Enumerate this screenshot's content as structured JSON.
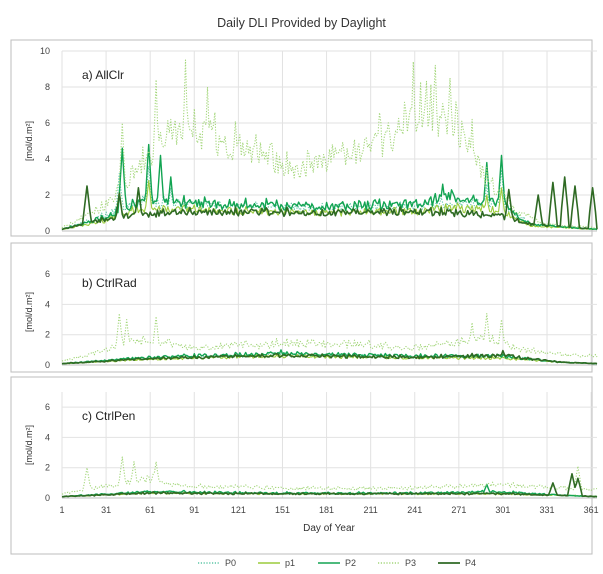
{
  "title": "Daily DLI Provided by Daylight",
  "xlabel": "Day of Year",
  "colors": {
    "P0": "#5cc6a6",
    "p1": "#9ccc3c",
    "P2": "#12a452",
    "P3": "#a3d67a",
    "P4": "#2f6a24"
  },
  "chart_data": [
    {
      "type": "line",
      "panel_label": "a) AllClr",
      "ylabel": "[mol/d.m²]",
      "ylim": [
        0,
        10
      ],
      "yticks": [
        0,
        2,
        4,
        6,
        8,
        10
      ],
      "xlim": [
        1,
        365
      ],
      "xticks": [
        1,
        31,
        61,
        91,
        121,
        151,
        181,
        211,
        241,
        271,
        301,
        331,
        361
      ],
      "grid": true,
      "series": [
        {
          "name": "P0",
          "style": "dotted",
          "profile": [
            [
              1,
              0.1
            ],
            [
              30,
              0.9
            ],
            [
              45,
              1.6
            ],
            [
              60,
              1.8
            ],
            [
              80,
              1.6
            ],
            [
              120,
              1.5
            ],
            [
              180,
              1.45
            ],
            [
              240,
              1.5
            ],
            [
              270,
              1.7
            ],
            [
              300,
              1.5
            ],
            [
              320,
              0.4
            ],
            [
              365,
              0.1
            ]
          ],
          "peaks": [
            [
              40,
              3.2
            ],
            [
              60,
              3.6
            ],
            [
              75,
              2.4
            ],
            [
              290,
              2.6
            ],
            [
              300,
              3.4
            ]
          ]
        },
        {
          "name": "p1",
          "style": "solid",
          "profile": [
            [
              1,
              0.1
            ],
            [
              30,
              0.6
            ],
            [
              45,
              1.1
            ],
            [
              60,
              1.4
            ],
            [
              80,
              1.3
            ],
            [
              120,
              1.2
            ],
            [
              180,
              1.1
            ],
            [
              240,
              1.2
            ],
            [
              270,
              1.4
            ],
            [
              300,
              1.2
            ],
            [
              320,
              0.3
            ],
            [
              365,
              0.1
            ]
          ],
          "peaks": [
            [
              40,
              2.2
            ],
            [
              60,
              2.8
            ],
            [
              290,
              2.0
            ],
            [
              300,
              2.4
            ]
          ]
        },
        {
          "name": "P2",
          "style": "solid",
          "profile": [
            [
              1,
              0.1
            ],
            [
              30,
              0.8
            ],
            [
              45,
              1.5
            ],
            [
              60,
              1.8
            ],
            [
              80,
              1.7
            ],
            [
              120,
              1.55
            ],
            [
              180,
              1.5
            ],
            [
              240,
              1.6
            ],
            [
              265,
              2.1
            ],
            [
              300,
              1.6
            ],
            [
              320,
              0.4
            ],
            [
              365,
              0.1
            ]
          ],
          "peaks": [
            [
              42,
              4.6
            ],
            [
              60,
              4.8
            ],
            [
              68,
              4.2
            ],
            [
              75,
              3.0
            ],
            [
              260,
              2.6
            ],
            [
              290,
              3.8
            ],
            [
              300,
              4.2
            ]
          ]
        },
        {
          "name": "P3",
          "style": "dotted",
          "profile": [
            [
              1,
              0.2
            ],
            [
              30,
              1.5
            ],
            [
              45,
              3.0
            ],
            [
              60,
              4.5
            ],
            [
              80,
              6.5
            ],
            [
              120,
              5.2
            ],
            [
              160,
              3.8
            ],
            [
              200,
              4.8
            ],
            [
              230,
              6.2
            ],
            [
              250,
              7.6
            ],
            [
              270,
              6.4
            ],
            [
              290,
              3.2
            ],
            [
              310,
              1.2
            ],
            [
              330,
              0.4
            ],
            [
              365,
              0.2
            ]
          ],
          "peaks": [
            [
              42,
              6.0
            ],
            [
              65,
              8.4
            ],
            [
              85,
              9.5
            ],
            [
              100,
              8.0
            ],
            [
              240,
              9.4
            ],
            [
              255,
              9.2
            ],
            [
              265,
              8.5
            ],
            [
              280,
              6.2
            ]
          ]
        },
        {
          "name": "P4",
          "style": "solid",
          "profile": [
            [
              1,
              0.1
            ],
            [
              30,
              0.7
            ],
            [
              45,
              0.9
            ],
            [
              60,
              1.0
            ],
            [
              80,
              1.2
            ],
            [
              120,
              1.15
            ],
            [
              180,
              1.1
            ],
            [
              240,
              1.15
            ],
            [
              270,
              1.1
            ],
            [
              300,
              0.9
            ],
            [
              320,
              0.4
            ],
            [
              365,
              0.1
            ]
          ],
          "peaks": [
            [
              18,
              2.5
            ],
            [
              40,
              2.1
            ],
            [
              53,
              2.4
            ],
            [
              305,
              2.3
            ],
            [
              325,
              2.0
            ],
            [
              335,
              2.7
            ],
            [
              343,
              3.0
            ],
            [
              350,
              2.5
            ],
            [
              362,
              2.4
            ]
          ]
        }
      ]
    },
    {
      "type": "line",
      "panel_label": "b) CtrlRad",
      "ylabel": "[mol/d.m²]",
      "ylim": [
        0,
        7
      ],
      "yticks": [
        0,
        2,
        4,
        6
      ],
      "xlim": [
        1,
        365
      ],
      "xticks": [
        1,
        31,
        61,
        91,
        121,
        151,
        181,
        211,
        241,
        271,
        301,
        331,
        361
      ],
      "grid": true,
      "series": [
        {
          "name": "P0",
          "style": "dotted",
          "profile": [
            [
              1,
              0.1
            ],
            [
              60,
              0.5
            ],
            [
              150,
              0.75
            ],
            [
              240,
              0.6
            ],
            [
              300,
              0.6
            ],
            [
              340,
              0.2
            ],
            [
              365,
              0.1
            ]
          ],
          "peaks": []
        },
        {
          "name": "p1",
          "style": "solid",
          "profile": [
            [
              1,
              0.1
            ],
            [
              60,
              0.4
            ],
            [
              150,
              0.65
            ],
            [
              240,
              0.5
            ],
            [
              300,
              0.5
            ],
            [
              340,
              0.2
            ],
            [
              365,
              0.1
            ]
          ],
          "peaks": []
        },
        {
          "name": "P2",
          "style": "solid",
          "profile": [
            [
              1,
              0.1
            ],
            [
              60,
              0.55
            ],
            [
              150,
              0.8
            ],
            [
              240,
              0.65
            ],
            [
              300,
              0.65
            ],
            [
              340,
              0.2
            ],
            [
              365,
              0.1
            ]
          ],
          "peaks": [
            [
              150,
              1.0
            ]
          ]
        },
        {
          "name": "P3",
          "style": "dotted",
          "profile": [
            [
              1,
              0.3
            ],
            [
              30,
              1.0
            ],
            [
              45,
              1.6
            ],
            [
              60,
              1.8
            ],
            [
              90,
              1.2
            ],
            [
              150,
              1.5
            ],
            [
              200,
              1.5
            ],
            [
              240,
              1.2
            ],
            [
              270,
              1.6
            ],
            [
              290,
              2.0
            ],
            [
              310,
              1.2
            ],
            [
              340,
              0.8
            ],
            [
              365,
              0.6
            ]
          ],
          "peaks": [
            [
              40,
              3.4
            ],
            [
              45,
              3.0
            ],
            [
              65,
              3.2
            ],
            [
              280,
              2.8
            ],
            [
              290,
              3.4
            ],
            [
              300,
              3.0
            ]
          ]
        },
        {
          "name": "P4",
          "style": "solid",
          "profile": [
            [
              1,
              0.1
            ],
            [
              60,
              0.45
            ],
            [
              150,
              0.7
            ],
            [
              240,
              0.55
            ],
            [
              300,
              0.7
            ],
            [
              340,
              0.2
            ],
            [
              365,
              0.1
            ]
          ],
          "peaks": [
            [
              301,
              0.95
            ]
          ]
        }
      ]
    },
    {
      "type": "line",
      "panel_label": "c) CtrlPen",
      "ylabel": "[mol/d.m²]",
      "ylim": [
        0,
        7
      ],
      "yticks": [
        0,
        2,
        4,
        6
      ],
      "xlim": [
        1,
        365
      ],
      "xticks": [
        1,
        31,
        61,
        91,
        121,
        151,
        181,
        211,
        241,
        271,
        301,
        331,
        361
      ],
      "grid": true,
      "series": [
        {
          "name": "P0",
          "style": "dotted",
          "profile": [
            [
              1,
              0.1
            ],
            [
              60,
              0.4
            ],
            [
              150,
              0.3
            ],
            [
              240,
              0.3
            ],
            [
              300,
              0.35
            ],
            [
              340,
              0.2
            ],
            [
              365,
              0.1
            ]
          ],
          "peaks": []
        },
        {
          "name": "p1",
          "style": "solid",
          "profile": [
            [
              1,
              0.1
            ],
            [
              60,
              0.35
            ],
            [
              150,
              0.3
            ],
            [
              240,
              0.3
            ],
            [
              300,
              0.3
            ],
            [
              340,
              0.2
            ],
            [
              365,
              0.1
            ]
          ],
          "peaks": []
        },
        {
          "name": "P2",
          "style": "solid",
          "profile": [
            [
              1,
              0.1
            ],
            [
              60,
              0.45
            ],
            [
              150,
              0.35
            ],
            [
              240,
              0.35
            ],
            [
              300,
              0.45
            ],
            [
              340,
              0.2
            ],
            [
              365,
              0.1
            ]
          ],
          "peaks": [
            [
              290,
              0.9
            ]
          ]
        },
        {
          "name": "P3",
          "style": "dotted",
          "profile": [
            [
              1,
              0.3
            ],
            [
              40,
              1.0
            ],
            [
              60,
              1.4
            ],
            [
              80,
              0.9
            ],
            [
              150,
              0.7
            ],
            [
              240,
              0.7
            ],
            [
              290,
              1.0
            ],
            [
              320,
              0.8
            ],
            [
              365,
              0.6
            ]
          ],
          "peaks": [
            [
              18,
              2.0
            ],
            [
              42,
              2.7
            ],
            [
              50,
              2.4
            ],
            [
              65,
              2.4
            ],
            [
              352,
              2.1
            ]
          ]
        },
        {
          "name": "P4",
          "style": "solid",
          "profile": [
            [
              1,
              0.1
            ],
            [
              60,
              0.35
            ],
            [
              150,
              0.3
            ],
            [
              240,
              0.3
            ],
            [
              300,
              0.3
            ],
            [
              340,
              0.2
            ],
            [
              365,
              0.1
            ]
          ],
          "peaks": [
            [
              335,
              1.0
            ],
            [
              348,
              1.6
            ],
            [
              352,
              1.3
            ]
          ]
        }
      ]
    }
  ]
}
